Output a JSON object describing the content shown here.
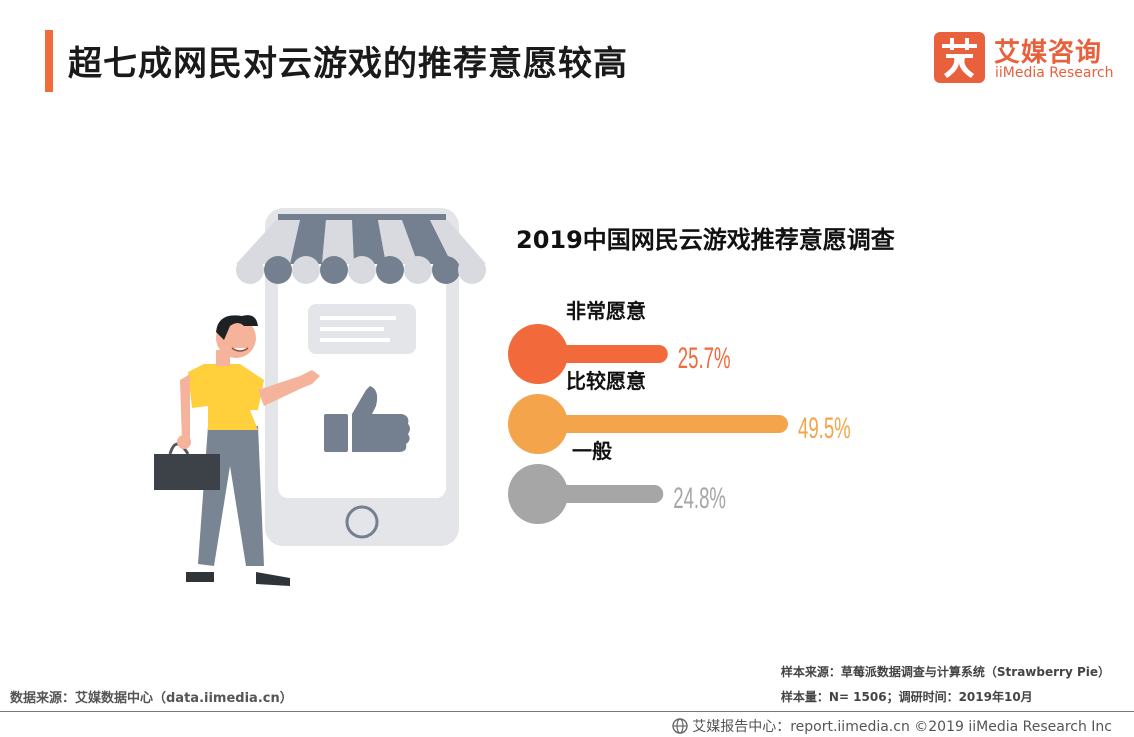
{
  "header": {
    "title": "超七成网民对云游戏的推荐意愿较高"
  },
  "logo": {
    "glyph": "艾",
    "name_cn": "艾媒咨询",
    "name_en": "iiMedia Research"
  },
  "chart_data": {
    "type": "bar",
    "title": "2019中国网民云游戏推荐意愿调查",
    "categories": [
      "非常愿意",
      "比较愿意",
      "一般"
    ],
    "values": [
      25.7,
      49.5,
      24.8
    ],
    "value_labels": [
      "25.7%",
      "49.5%",
      "24.8%"
    ],
    "unit": "%",
    "colors": [
      "#f26a3c",
      "#f4a54c",
      "#a6a6a6"
    ],
    "orientation": "horizontal",
    "legend": "none",
    "grid": false
  },
  "notes": {
    "source_left": "数据来源：艾媒数据中心（data.iimedia.cn）",
    "sample_source": "样本来源：草莓派数据调查与计算系统（Strawberry Pie）",
    "sample_size": "样本量：N= 1506；调研时间：2019年10月"
  },
  "footer": {
    "text": "艾媒报告中心：report.iimedia.cn ©2019  iiMedia Research  Inc"
  }
}
